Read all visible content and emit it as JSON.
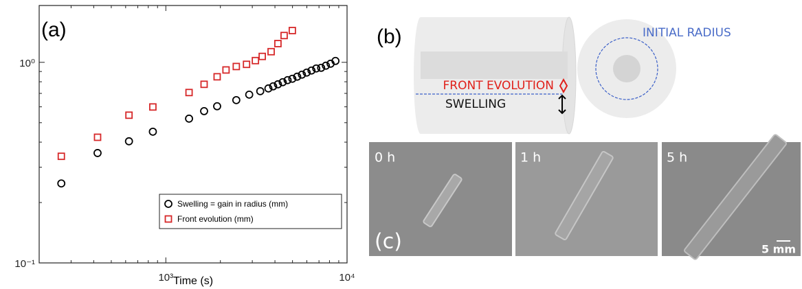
{
  "chart_data": {
    "type": "scatter",
    "panel_label": "(a)",
    "xlabel": "Time (s)",
    "xscale": "log",
    "yscale": "log",
    "xlim": [
      200,
      10000
    ],
    "ylim": [
      0.1,
      1.92
    ],
    "xticks": [
      {
        "value": 1000,
        "label": "10³"
      },
      {
        "value": 10000,
        "label": "10⁴"
      }
    ],
    "yticks": [
      {
        "value": 0.1,
        "label": "10⁻¹"
      },
      {
        "value": 1,
        "label": "10⁰"
      }
    ],
    "xminorticks": [
      300,
      400,
      500,
      600,
      700,
      800,
      900,
      2000,
      3000,
      4000,
      5000,
      6000,
      7000,
      8000,
      9000
    ],
    "yminorticks": [
      0.2,
      0.3,
      0.4,
      0.5,
      0.6,
      0.7,
      0.8,
      0.9
    ],
    "grid": false,
    "legend": "lower right",
    "series": [
      {
        "name": "Swelling = gain in radius (mm)",
        "color": "#000000",
        "marker": "circle",
        "x": [
          265,
          420,
          626,
          848,
          1343,
          1626,
          1919,
          2448,
          2885,
          3319,
          3681,
          3910,
          4155,
          4415,
          4698,
          4989,
          5307,
          5636,
          5988,
          6364,
          6761,
          7194,
          7640,
          8110,
          8630
        ],
        "values": [
          0.249,
          0.353,
          0.404,
          0.451,
          0.524,
          0.571,
          0.604,
          0.648,
          0.69,
          0.718,
          0.741,
          0.759,
          0.777,
          0.796,
          0.815,
          0.828,
          0.848,
          0.868,
          0.889,
          0.91,
          0.932,
          0.939,
          0.962,
          0.984,
          1.016
        ]
      },
      {
        "name": "Front evolution (mm)",
        "color": "#d62728",
        "marker": "square",
        "x": [
          265,
          420,
          626,
          848,
          1343,
          1626,
          1919,
          2148,
          2448,
          2788,
          3121,
          3404,
          3811,
          4155,
          4495,
          4989
        ],
        "values": [
          0.34,
          0.423,
          0.545,
          0.599,
          0.707,
          0.777,
          0.847,
          0.916,
          0.953,
          0.977,
          1.02,
          1.07,
          1.13,
          1.24,
          1.36,
          1.44
        ]
      }
    ]
  },
  "diagram": {
    "panel_label": "(b)",
    "initial_radius": "INITIAL RADIUS",
    "front_evolution": "FRONT EVOLUTION",
    "swelling": "SWELLING"
  },
  "photos": {
    "panel_label": "(c)",
    "frames": [
      "0 h",
      "1 h",
      "5 h"
    ],
    "scale_bar": "5 mm"
  }
}
